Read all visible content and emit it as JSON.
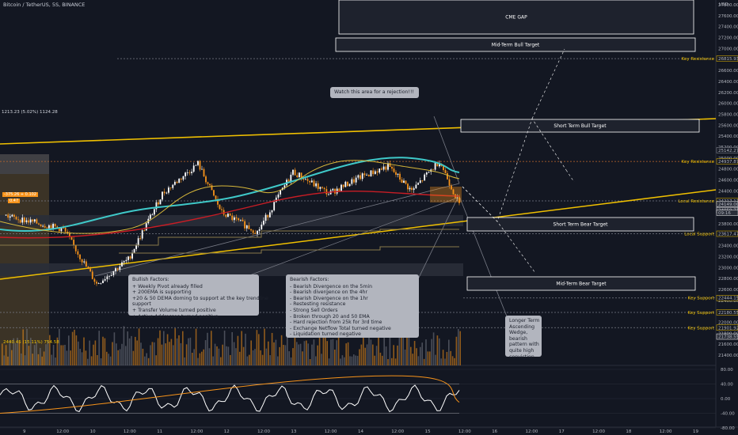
{
  "header": {
    "symbol_title": "Bitcoin / TetherUS, 5S, BINANCE"
  },
  "top_readout": "1213.23 (5.02%) 1124.28",
  "volume_readout": "2440.45 (15.11%) 754.58",
  "price_axis": {
    "unit": "USD",
    "ticks": [
      "27800.00",
      "27600.00",
      "27400.00",
      "27200.00",
      "27000.00",
      "26800.00",
      "26600.00",
      "26400.00",
      "26200.00",
      "26000.00",
      "25800.00",
      "25600.00",
      "25400.00",
      "25200.00",
      "25000.00",
      "24800.00",
      "24600.00",
      "24400.00",
      "24200.00",
      "24000.00",
      "23800.00",
      "23600.00",
      "23400.00",
      "23200.00",
      "23000.00",
      "22800.00",
      "22600.00",
      "22400.00",
      "22200.00",
      "22000.00",
      "21800.00",
      "21600.00",
      "21400.00"
    ],
    "highlighted": [
      {
        "value": "26815.93",
        "color": "#f0c000"
      },
      {
        "value": "25142.27",
        "color": "#9598a1"
      },
      {
        "value": "24937.87",
        "color": "#f0c000"
      },
      {
        "value": "24217.17",
        "color": "#f0c000"
      },
      {
        "value": "24149.00",
        "color": "#ffffff"
      },
      {
        "value": "24059.71",
        "color": "#ffffff"
      },
      {
        "value": "09:16",
        "color": "#ffffff"
      },
      {
        "value": "23617.47",
        "color": "#f0c000"
      },
      {
        "value": "22444.15",
        "color": "#f0c000"
      },
      {
        "value": "22180.55",
        "color": "#f0c000"
      },
      {
        "value": "21901.92",
        "color": "#f0c000"
      },
      {
        "value": "21738.55",
        "color": "#ffffff"
      }
    ]
  },
  "osc_axis": {
    "ticks": [
      "80.00",
      "40.00",
      "0.00",
      "-40.00",
      "-80.00"
    ]
  },
  "time_axis": {
    "ticks": [
      "9",
      "12:00",
      "10",
      "12:00",
      "11",
      "12:00",
      "12",
      "12:00",
      "13",
      "12:00",
      "14",
      "12:00",
      "15",
      "12:00",
      "16",
      "12:00",
      "17",
      "12:00",
      "18",
      "12:00",
      "19"
    ]
  },
  "levels": [
    {
      "label": "Key Resistance"
    },
    {
      "label": "Key Resistance"
    },
    {
      "label": "Local Resistance"
    },
    {
      "label": "Local Support"
    },
    {
      "label": "Key Support"
    },
    {
      "label": "Key Support"
    },
    {
      "label": "Key Support"
    }
  ],
  "boxes": {
    "cme_gap": "CME GAP",
    "mid_bull": "Mid-Term Bull Target",
    "short_bull": "Short Term Bull Target",
    "short_bear": "Short Term Bear Target",
    "mid_bear": "Mid-Term Bear Target"
  },
  "notes": {
    "rejection": "Watch this area for a rejection!!!",
    "bullish": [
      "Bullish Factors:",
      "+ Weekly Pivot already filled",
      "+ 200EMA is supporting",
      "+20 & 50 DEMA doming to support at the key trendline",
      "support",
      "+ Transfer Volume turned positive",
      "+ Active Addresses turned positive"
    ],
    "bearish": [
      "Bearish Factors:",
      "- Bearish Divergence on the 5min",
      "- Bearish divergence on the 4hr",
      "- Bearish Divergence on the 1hr",
      "- Restesting resistance",
      "- Strong Sell Orders",
      "- Broken through 20 and 50 EMA",
      "- Hard rejection from 25k for 3rd time",
      "- Exchange Netflow Total turned negative",
      "- Liquidation turned negative"
    ],
    "wedge": [
      "Longer Term",
      "Ascending",
      "Wedge,",
      "bearish",
      "pattern with",
      "quite high",
      "conviction"
    ]
  },
  "left_badge": "-375.26 + 0.102",
  "left_badge_sub": "0.47",
  "chart_data": {
    "type": "line",
    "title": "Bitcoin / TetherUS, 5S, BINANCE",
    "xlabel": "",
    "ylabel": "USD",
    "ylim": [
      21400,
      27800
    ],
    "key_levels": [
      26815.93,
      24937.87,
      24217.17,
      23617.47,
      22444.15,
      22180.55,
      21901.92
    ],
    "price_points": [
      {
        "x": "9",
        "y": 23950
      },
      {
        "x": "9 12:00",
        "y": 23700
      },
      {
        "x": "10",
        "y": 22700
      },
      {
        "x": "10 12:00",
        "y": 23150
      },
      {
        "x": "11",
        "y": 24350
      },
      {
        "x": "11 12:00",
        "y": 24900
      },
      {
        "x": "12",
        "y": 24000
      },
      {
        "x": "12 12:00",
        "y": 23650
      },
      {
        "x": "13",
        "y": 24750
      },
      {
        "x": "13 12:00",
        "y": 24350
      },
      {
        "x": "14",
        "y": 24650
      },
      {
        "x": "14 12:00",
        "y": 24850
      },
      {
        "x": "15",
        "y": 24400
      },
      {
        "x": "15 6:00",
        "y": 24950
      },
      {
        "x": "15 9:16",
        "y": 24149
      }
    ],
    "targets": {
      "CME GAP": [
        26900,
        27800
      ],
      "Mid-Term Bull Target": [
        26600,
        26800
      ],
      "Short Term Bull Target": [
        25050,
        25200
      ],
      "Short Term Bear Target": [
        23550,
        23700
      ],
      "Mid-Term Bear Target": [
        22250,
        22400
      ]
    },
    "osc_ylim": [
      -80,
      80
    ]
  }
}
